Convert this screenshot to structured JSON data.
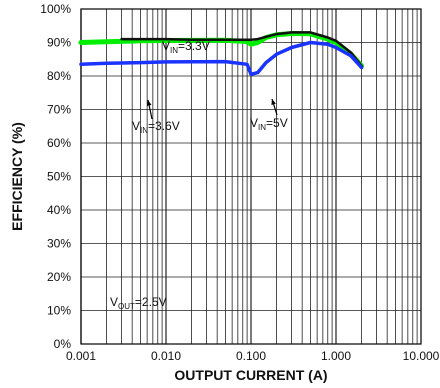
{
  "chart_data": {
    "type": "line",
    "xlabel": "OUTPUT CURRENT (A)",
    "ylabel": "EFFICIENCY (%)",
    "x_scale": "log",
    "xlim": [
      0.001,
      10
    ],
    "ylim": [
      0,
      100
    ],
    "grid": true,
    "x_ticks": [
      "0.001",
      "0.010",
      "0.100",
      "1.000",
      "10.000"
    ],
    "y_ticks": [
      "0%",
      "10%",
      "20%",
      "30%",
      "40%",
      "50%",
      "60%",
      "70%",
      "80%",
      "90%",
      "100%"
    ],
    "series": [
      {
        "name": "VIN=3.3V",
        "color": "#00ee00",
        "points": [
          [
            0.001,
            90.0
          ],
          [
            0.002,
            90.2
          ],
          [
            0.005,
            90.5
          ],
          [
            0.01,
            90.6
          ],
          [
            0.05,
            90.7
          ],
          [
            0.09,
            90.3
          ],
          [
            0.1,
            89.5
          ],
          [
            0.12,
            90.0
          ],
          [
            0.15,
            91.5
          ],
          [
            0.2,
            92.3
          ],
          [
            0.3,
            92.7
          ],
          [
            0.5,
            92.6
          ],
          [
            0.8,
            91.0
          ],
          [
            1.0,
            90.0
          ],
          [
            1.5,
            86.5
          ],
          [
            2.0,
            83.0
          ]
        ]
      },
      {
        "name": "VIN=3.6V",
        "color": "#111111",
        "points": [
          [
            0.003,
            91.0
          ],
          [
            0.005,
            91.0
          ],
          [
            0.01,
            91.0
          ],
          [
            0.02,
            90.8
          ],
          [
            0.1,
            90.8
          ],
          [
            0.12,
            91.0
          ],
          [
            0.15,
            91.7
          ],
          [
            0.2,
            92.5
          ],
          [
            0.3,
            93.0
          ],
          [
            0.5,
            93.0
          ],
          [
            0.8,
            91.5
          ],
          [
            1.0,
            90.5
          ],
          [
            1.5,
            87.0
          ],
          [
            2.0,
            83.0
          ]
        ]
      },
      {
        "name": "VIN=5V",
        "color": "#1a33ff",
        "points": [
          [
            0.001,
            83.5
          ],
          [
            0.002,
            83.8
          ],
          [
            0.005,
            84.0
          ],
          [
            0.01,
            84.2
          ],
          [
            0.05,
            84.3
          ],
          [
            0.09,
            83.5
          ],
          [
            0.1,
            80.5
          ],
          [
            0.12,
            81.0
          ],
          [
            0.15,
            84.0
          ],
          [
            0.2,
            86.5
          ],
          [
            0.3,
            88.5
          ],
          [
            0.5,
            90.0
          ],
          [
            0.8,
            89.5
          ],
          [
            1.0,
            88.5
          ],
          [
            1.5,
            86.0
          ],
          [
            2.0,
            82.5
          ]
        ]
      }
    ],
    "annotations": [
      {
        "main": "V",
        "sub": "IN",
        "rest": "=3.3V",
        "target": "VIN=3.3V"
      },
      {
        "main": "V",
        "sub": "IN",
        "rest": "=3.6V",
        "target": "VIN=3.6V"
      },
      {
        "main": "V",
        "sub": "IN",
        "rest": "=5V",
        "target": "VIN=5V"
      },
      {
        "main": "V",
        "sub": "OUT",
        "rest": "=2.5V",
        "target": ""
      }
    ]
  }
}
